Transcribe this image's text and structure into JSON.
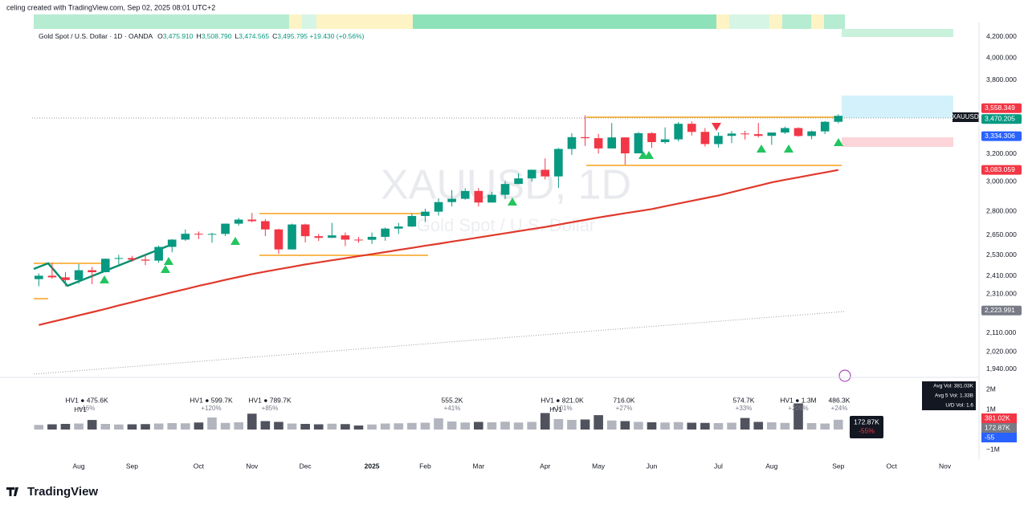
{
  "header": "celing created with TradingView.com, Sep 02, 2025 08:01 UTC+2",
  "brand": "TradingView",
  "chart_data": {
    "type": "candlestick",
    "title": "Gold Spot / U.S. Dollar · 1D · OANDA",
    "ohlc_legend": [
      {
        "key": "O",
        "text": "3,475.910"
      },
      {
        "key": "H",
        "text": "3,508.790"
      },
      {
        "key": "L",
        "text": "3,474.565"
      },
      {
        "key": "C",
        "text": "3,495.795"
      }
    ],
    "change": "+19.430 (+0.56%)",
    "watermark": "XAUUSD, 1D",
    "watermark_sub": "Gold Spot / U.S. Dollar",
    "symbol_tag": "XAUUSD",
    "log_scale": true,
    "grid": false,
    "up_color": "#089981",
    "down_color": "#f23645",
    "categories": [
      null,
      null,
      null,
      "Aug",
      null,
      null,
      null,
      "Sep",
      null,
      null,
      null,
      null,
      "Oct",
      null,
      null,
      null,
      "Nov",
      null,
      null,
      null,
      "Dec",
      null,
      null,
      null,
      null,
      "2025",
      null,
      null,
      null,
      "Feb",
      null,
      null,
      null,
      "Mar",
      null,
      null,
      null,
      null,
      "Apr",
      null,
      null,
      null,
      "May",
      null,
      null,
      null,
      "Jun",
      null,
      null,
      null,
      null,
      "Jul",
      null,
      null,
      null,
      "Aug",
      null,
      null,
      null,
      null,
      "Sep",
      null,
      null,
      null,
      "Oct",
      null,
      null,
      null,
      "Nov",
      null,
      null
    ],
    "open": [
      2392,
      2411,
      2402,
      2387,
      2442,
      2431,
      2508,
      2512,
      2503,
      2497,
      2578,
      2622,
      2658,
      2653,
      2657,
      2721,
      2747,
      2737,
      2685,
      2563,
      2716,
      2643,
      2633,
      2648,
      2622,
      2621,
      2639,
      2690,
      2703,
      2770,
      2798,
      2861,
      2883,
      2936,
      2858,
      2910,
      2984,
      3023,
      3084,
      3037,
      3237,
      3327,
      3319,
      3241,
      3325,
      3204,
      3358,
      3289,
      3310,
      3432,
      3368,
      3274,
      3337,
      3355,
      3350,
      3337,
      3363,
      3398,
      3336,
      3372,
      3448,
      null,
      null,
      null,
      null,
      null,
      null,
      null,
      null,
      null,
      null
    ],
    "high": [
      2424,
      2484,
      2432,
      2477,
      2461,
      2509,
      2531,
      2525,
      2529,
      2586,
      2625,
      2685,
      2672,
      2664,
      2722,
      2758,
      2790,
      2750,
      2689,
      2721,
      2721,
      2657,
      2726,
      2666,
      2638,
      2665,
      2697,
      2726,
      2786,
      2817,
      2886,
      2942,
      2955,
      2956,
      2930,
      3004,
      3057,
      3086,
      3167,
      3245,
      3357,
      3500,
      3352,
      3438,
      3326,
      3366,
      3365,
      3403,
      3446,
      3452,
      3398,
      3365,
      3374,
      3377,
      3439,
      3362,
      3409,
      3404,
      3379,
      3453,
      3509,
      null,
      null,
      null,
      null,
      null,
      null,
      null,
      null,
      null,
      null
    ],
    "low": [
      2353,
      2394,
      2353,
      2367,
      2364,
      2430,
      2470,
      2491,
      2471,
      2485,
      2546,
      2615,
      2625,
      2603,
      2644,
      2708,
      2730,
      2643,
      2537,
      2563,
      2605,
      2614,
      2632,
      2583,
      2603,
      2596,
      2615,
      2657,
      2700,
      2731,
      2773,
      2832,
      2877,
      2832,
      2857,
      2880,
      2982,
      3000,
      3015,
      2957,
      3193,
      3260,
      3202,
      3241,
      3121,
      3204,
      3245,
      3276,
      3294,
      3340,
      3255,
      3248,
      3282,
      3309,
      3324,
      3268,
      3352,
      3330,
      3311,
      3351,
      3436,
      null,
      null,
      null,
      null,
      null,
      null,
      null,
      null,
      null,
      null
    ],
    "close": [
      2411,
      2402,
      2387,
      2442,
      2431,
      2508,
      2512,
      2503,
      2497,
      2578,
      2622,
      2658,
      2653,
      2657,
      2721,
      2747,
      2737,
      2685,
      2563,
      2716,
      2643,
      2633,
      2648,
      2622,
      2621,
      2639,
      2690,
      2703,
      2770,
      2798,
      2861,
      2883,
      2936,
      2858,
      2910,
      2984,
      3023,
      3084,
      3037,
      3237,
      3327,
      3319,
      3241,
      3325,
      3204,
      3358,
      3289,
      3310,
      3432,
      3368,
      3274,
      3337,
      3355,
      3350,
      3337,
      3363,
      3398,
      3336,
      3372,
      3448,
      3496,
      null,
      null,
      null,
      null,
      null,
      null,
      null,
      null,
      null,
      null
    ],
    "ma": {
      "color": "#e0392b",
      "values": [
        2150,
        2166,
        2182,
        2199,
        2215,
        2232,
        2250,
        2267,
        2285,
        2302,
        2320,
        2337,
        2355,
        2371,
        2388,
        2404,
        2420,
        2434,
        2448,
        2461,
        2475,
        2487,
        2499,
        2511,
        2523,
        2535,
        2547,
        2560,
        2572,
        2585,
        2597,
        2610,
        2622,
        2635,
        2648,
        2661,
        2674,
        2687,
        2700,
        2715,
        2730,
        2745,
        2760,
        2774,
        2788,
        2801,
        2815,
        2833,
        2851,
        2869,
        2887,
        2905,
        2927,
        2950,
        2972,
        2995,
        3013,
        3030,
        3048,
        3065,
        3083,
        null,
        null,
        null,
        null,
        null,
        null,
        null,
        null,
        null,
        null
      ]
    },
    "ylim": [
      1911,
      4343
    ],
    "yticks": [
      {
        "value": 4200,
        "label": "4,200.000"
      },
      {
        "value": 4000,
        "label": "4,000.000"
      },
      {
        "value": 3800,
        "label": "3,800.000"
      },
      {
        "value": 3200,
        "label": "3,200.000"
      },
      {
        "value": 3000,
        "label": "3,000.000"
      },
      {
        "value": 2800,
        "label": "2,800.000"
      },
      {
        "value": 2650,
        "label": "2,650.000"
      },
      {
        "value": 2530,
        "label": "2,530.000"
      },
      {
        "value": 2410,
        "label": "2,410.000"
      },
      {
        "value": 2310,
        "label": "2,310.000"
      },
      {
        "value": 2110,
        "label": "2,110.000"
      },
      {
        "value": 2020,
        "label": "2,020.000"
      },
      {
        "value": 1940,
        "label": "1,940.000"
      }
    ],
    "price_tags": [
      {
        "value": 3558.349,
        "label": "3,558.349",
        "color": "#f23645"
      },
      {
        "value": 3470.205,
        "label": "3,470.205",
        "color": "#089981"
      },
      {
        "value": 3334.306,
        "label": "3,334.306",
        "color": "#2962ff"
      },
      {
        "value": 3083.059,
        "label": "3,083.059",
        "color": "#f23645"
      },
      {
        "value": 2223.991,
        "label": "2,223.991",
        "color": "#787b86"
      }
    ],
    "volume": {
      "values": [
        230000,
        260000,
        280000,
        300000,
        475600,
        280000,
        250000,
        260000,
        270000,
        300000,
        320000,
        310000,
        350000,
        599700,
        330000,
        360000,
        789700,
        420000,
        380000,
        300000,
        280000,
        260000,
        290000,
        270000,
        200000,
        250000,
        300000,
        310000,
        330000,
        340000,
        555200,
        400000,
        350000,
        380000,
        360000,
        390000,
        350000,
        380000,
        821000,
        520000,
        480000,
        500000,
        716000,
        450000,
        420000,
        380000,
        360000,
        350000,
        370000,
        340000,
        330000,
        320000,
        340000,
        574700,
        380000,
        360000,
        330000,
        1300000,
        320000,
        300000,
        486300,
        null,
        null,
        null,
        null,
        null,
        null,
        null,
        null,
        null,
        null
      ],
      "ylim": [
        -1480000,
        2520000
      ],
      "yticks": [
        {
          "value": 2000000,
          "label": "2M"
        },
        {
          "value": 1000000,
          "label": "1M"
        },
        {
          "value": -1000000,
          "label": "−1M"
        }
      ],
      "annotations": [
        {
          "label": "HV1 ● 475.6K",
          "sub": "HV1",
          "change": "+16%"
        },
        {
          "label": "HV1 ● 599.7K",
          "change": "+120%"
        },
        {
          "label": "HV1 ● 789.7K",
          "change": "+85%"
        },
        {
          "label": "555.2K",
          "change": "+41%"
        },
        {
          "label": "HV1 ● 821.0K",
          "sub": "HV1",
          "change": "+101%"
        },
        {
          "label": "716.0K",
          "change": "+27%"
        },
        {
          "label": "574.7K",
          "change": "+33%"
        },
        {
          "label": "HV1 ● 1.3M",
          "change": "+209%"
        },
        {
          "label": "486.3K",
          "change": "+24%"
        }
      ],
      "stats": [
        "Avg Vol: 381.03K",
        "Avg 5 Vol: 1.33B",
        "U/D Vol: 1.6"
      ],
      "last_tag": "172.87K",
      "last_change": "-55%",
      "scale_tags": [
        {
          "text": "381.02K",
          "color": "#f23645"
        },
        {
          "text": "172.87K",
          "color": "#787b86"
        },
        {
          "text": "-55",
          "color": "#2962ff"
        }
      ]
    }
  }
}
